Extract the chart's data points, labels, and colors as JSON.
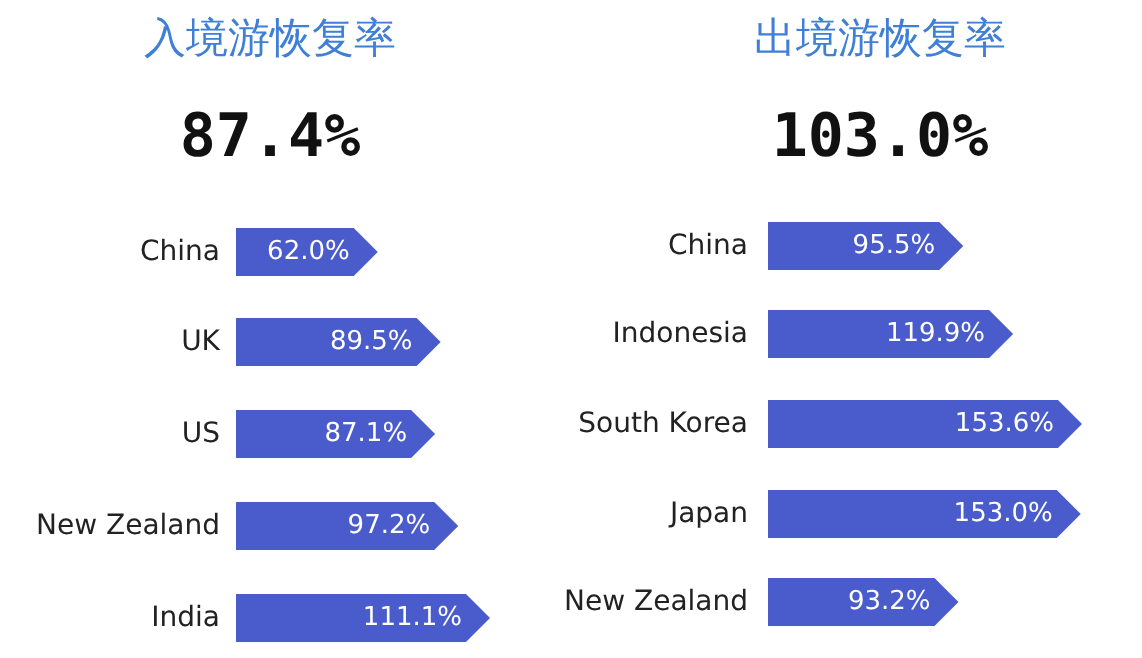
{
  "chart_data": [
    {
      "type": "bar",
      "orientation": "horizontal",
      "title": "入境游恢复率",
      "subtitle": "87.4%",
      "categories": [
        "China",
        "UK",
        "US",
        "New Zealand",
        "India"
      ],
      "values": [
        62.0,
        89.5,
        87.1,
        97.2,
        111.1
      ],
      "value_labels": [
        "62.0%",
        "89.5%",
        "87.1%",
        "97.2%",
        "111.1%"
      ],
      "color": "#4a5ccb"
    },
    {
      "type": "bar",
      "orientation": "horizontal",
      "title": "出境游恢复率",
      "subtitle": "103.0%",
      "categories": [
        "China",
        "Indonesia",
        "South Korea",
        "Japan",
        "New Zealand"
      ],
      "values": [
        95.5,
        119.9,
        153.6,
        153.0,
        93.2
      ],
      "value_labels": [
        "95.5%",
        "119.9%",
        "153.6%",
        "153.0%",
        "93.2%"
      ],
      "color": "#4a5ccb"
    }
  ]
}
